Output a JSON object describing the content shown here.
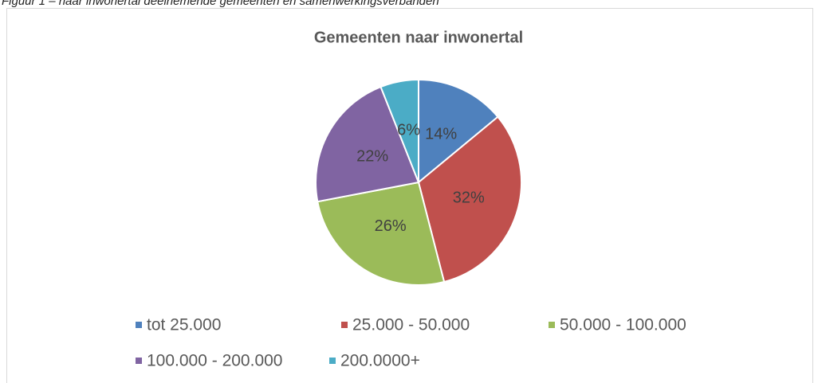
{
  "chart_data": {
    "type": "pie",
    "caption": "Figuur 1 – naar inwonertal deelnemende gemeenten en samenwerkingsverbanden",
    "title": "Gemeenten naar inwonertal",
    "categories": [
      "tot 25.000",
      "25.000 - 50.000",
      "50.000 - 100.000",
      "100.000 - 200.000",
      "200.0000+"
    ],
    "values": [
      14,
      32,
      26,
      22,
      6
    ],
    "value_labels": [
      "14%",
      "32%",
      "26%",
      "22%",
      "6%"
    ],
    "colors": [
      "#4f81bd",
      "#c0504d",
      "#9bbb59",
      "#8064a2",
      "#4bacc6"
    ],
    "legend": "bottom"
  }
}
